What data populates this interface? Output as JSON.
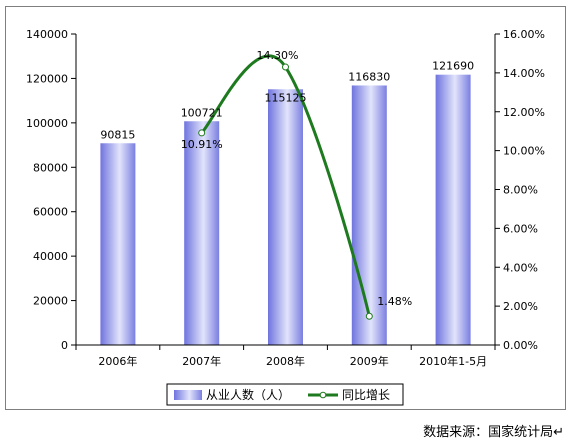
{
  "chart_data": {
    "type": "bar",
    "categories": [
      "2006年",
      "2007年",
      "2008年",
      "2009年",
      "2010年1-5月"
    ],
    "series": [
      {
        "name": "从业人数（人）",
        "type": "bar",
        "axis": "left",
        "values": [
          90815,
          100721,
          115125,
          116830,
          121690
        ],
        "labels": [
          "90815",
          "100721",
          "115125",
          "116830",
          "121690"
        ],
        "color": "#8b8fe6"
      },
      {
        "name": "同比增长",
        "type": "line",
        "axis": "right",
        "values": [
          null,
          10.91,
          14.3,
          1.48,
          null
        ],
        "labels": [
          "",
          "10.91%",
          "14.30%",
          "1.48%",
          ""
        ],
        "color": "#1e7a1e"
      }
    ],
    "y_left": {
      "lim": [
        0,
        140000
      ],
      "ticks": [
        "0",
        "20000",
        "40000",
        "60000",
        "80000",
        "100000",
        "120000",
        "140000"
      ]
    },
    "y_right": {
      "lim": [
        0,
        16
      ],
      "ticks": [
        "0.00%",
        "2.00%",
        "4.00%",
        "6.00%",
        "8.00%",
        "10.00%",
        "12.00%",
        "14.00%",
        "16.00%"
      ]
    },
    "legend": {
      "placement": "bottom-center"
    },
    "grid": false,
    "title": "",
    "xlabel": "",
    "ylabel": ""
  },
  "source_note": "数据来源：国家统计局↵"
}
